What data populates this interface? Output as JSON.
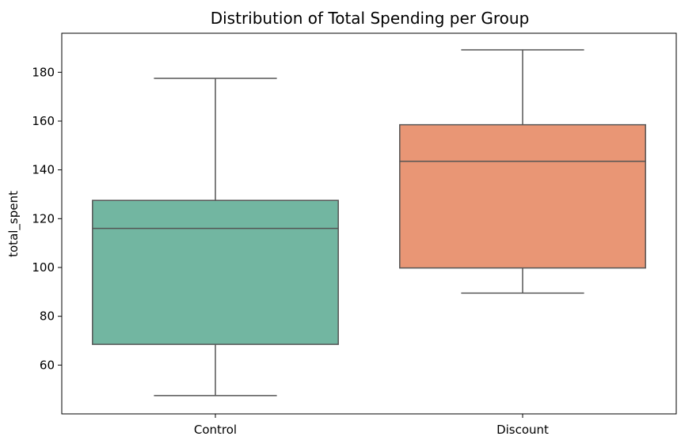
{
  "chart_data": {
    "type": "box",
    "title": "Distribution of Total Spending per Group",
    "xlabel": "",
    "ylabel": "total_spent",
    "ylim": [
      40,
      196
    ],
    "yticks": [
      60,
      80,
      100,
      120,
      140,
      160,
      180
    ],
    "categories": [
      "Control",
      "Discount"
    ],
    "series": [
      {
        "category": "Control",
        "min": 47.5,
        "q1": 68.5,
        "median": 116,
        "q3": 127.5,
        "max": 177.5,
        "color": "#72b6a1"
      },
      {
        "category": "Discount",
        "min": 89.5,
        "q1": 99.8,
        "median": 143.5,
        "q3": 158.5,
        "max": 189.2,
        "color": "#e99675"
      }
    ],
    "line_color": "#555555",
    "grid": false
  }
}
